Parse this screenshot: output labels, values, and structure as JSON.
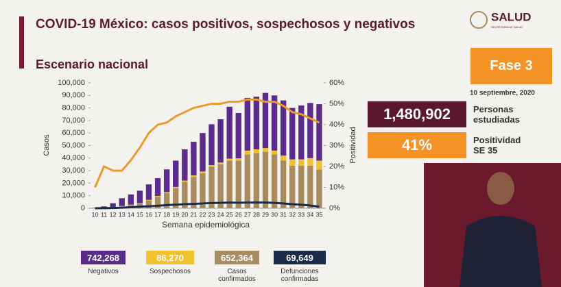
{
  "header": {
    "title": "COVID-19 México: casos positivos, sospechosos y negativos",
    "subtitle": "Escenario nacional",
    "logo": "SALUD",
    "logo_sub": "SECRETARÍA DE SALUD",
    "phase": "Fase 3",
    "date": "10 septiembre, 2020"
  },
  "stats": [
    {
      "value": "1,480,902",
      "label": "Personas estudiadas"
    },
    {
      "value": "41%",
      "label": "Positividad SE 35"
    }
  ],
  "chart_data": {
    "type": "bar",
    "xlabel": "Semana epidemiológica",
    "ylabel": "Casos",
    "y2label": "Positividad",
    "categories": [
      "10",
      "11",
      "12",
      "13",
      "14",
      "15",
      "16",
      "17",
      "18",
      "19",
      "20",
      "21",
      "22",
      "23",
      "24",
      "25",
      "26",
      "27",
      "28",
      "29",
      "30",
      "31",
      "32",
      "33",
      "34",
      "35"
    ],
    "ylim": [
      0,
      100000
    ],
    "yticks": [
      0,
      {
        "value": 10000,
        "label": "10,000"
      },
      {
        "value": 20000,
        "label": "20,000"
      },
      {
        "value": 30000,
        "label": "30,000"
      },
      {
        "value": 40000,
        "label": "40,000"
      },
      {
        "value": 50000,
        "label": "50,000"
      },
      {
        "value": 60000,
        "label": "60,000"
      },
      {
        "value": 70000,
        "label": "70,000"
      },
      {
        "value": 80000,
        "label": "80,000"
      },
      {
        "value": 90000,
        "label": "90,000"
      },
      {
        "value": 100000,
        "label": "100,000"
      }
    ],
    "y2lim": [
      0,
      60
    ],
    "y2ticks": [
      {
        "value": 0,
        "label": "0%"
      },
      {
        "value": 10,
        "label": "10%"
      },
      {
        "value": 20,
        "label": "20%"
      },
      {
        "value": 30,
        "label": "30%"
      },
      {
        "value": 40,
        "label": "40%"
      },
      {
        "value": 50,
        "label": "50%"
      },
      {
        "value": 60,
        "label": "60%"
      }
    ],
    "series": [
      {
        "name": "Negativos",
        "total": "742,268",
        "type": "bar",
        "color": "#5b2c8c",
        "values": [
          200,
          1100,
          3000,
          6200,
          8100,
          10000,
          12300,
          14200,
          18100,
          21000,
          24900,
          26800,
          30700,
          32600,
          34500,
          41400,
          36200,
          42000,
          42000,
          44000,
          44000,
          44000,
          41000,
          43000,
          44000,
          45000
        ]
      },
      {
        "name": "Sospechosos",
        "total": "86,270",
        "type": "bar",
        "color": "#f2c12e",
        "values": [
          0,
          100,
          200,
          300,
          400,
          500,
          700,
          800,
          900,
          1000,
          1100,
          1200,
          1300,
          1400,
          1500,
          1600,
          1800,
          3000,
          3000,
          3000,
          3000,
          4000,
          5000,
          5000,
          6000,
          7000
        ]
      },
      {
        "name": "Casos confirmados",
        "total": "652,364",
        "type": "bar",
        "color": "#a88b5e",
        "values": [
          100,
          300,
          800,
          1500,
          2500,
          3500,
          6000,
          9000,
          12000,
          16000,
          21000,
          25000,
          28000,
          33000,
          35000,
          38000,
          38000,
          43000,
          44000,
          45000,
          43000,
          38000,
          34000,
          34000,
          34000,
          31000
        ]
      },
      {
        "name": "Defunciones confirmadas",
        "total": "69,649",
        "type": "line",
        "color": "#1a2a4a",
        "values": [
          0,
          50,
          200,
          500,
          800,
          1200,
          1600,
          2000,
          2500,
          2800,
          3200,
          3500,
          3800,
          4200,
          4300,
          4500,
          4400,
          4500,
          4600,
          4500,
          4300,
          3800,
          3200,
          2800,
          2200,
          1200
        ]
      },
      {
        "type": "line",
        "axis": "y2",
        "color": "#eb9a2d",
        "values": [
          10,
          20,
          18,
          18,
          23,
          29,
          36,
          40,
          41,
          44,
          46,
          48,
          49,
          50,
          50,
          51,
          51,
          52,
          52,
          51,
          51,
          49,
          46,
          45,
          43,
          41
        ]
      }
    ]
  }
}
